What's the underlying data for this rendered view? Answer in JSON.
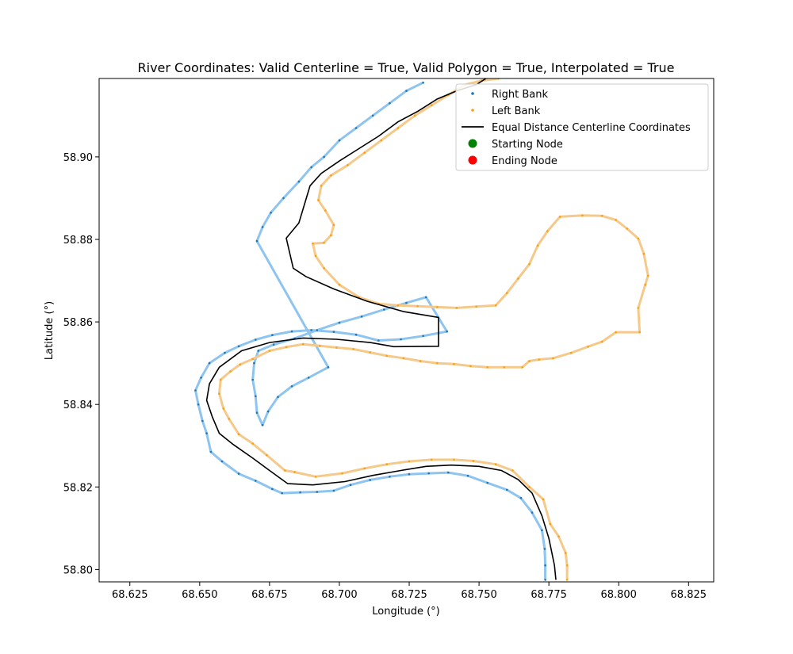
{
  "chart_data": {
    "type": "line",
    "title": "River Coordinates: Valid Centerline = True, Valid Polygon = True, Interpolated = True",
    "xlabel": "Longitude (°)",
    "ylabel": "Latitude (°)",
    "xlim": [
      68.614,
      68.834
    ],
    "ylim": [
      58.797,
      58.919
    ],
    "xticks": [
      68.625,
      68.65,
      68.675,
      68.7,
      68.725,
      68.75,
      68.775,
      68.8,
      68.825
    ],
    "xtick_labels": [
      "68.625",
      "68.650",
      "68.675",
      "68.700",
      "68.725",
      "68.750",
      "68.775",
      "68.800",
      "68.825"
    ],
    "yticks": [
      58.8,
      58.82,
      58.84,
      58.86,
      58.88,
      58.9
    ],
    "ytick_labels": [
      "58.80",
      "58.82",
      "58.84",
      "58.86",
      "58.88",
      "58.90"
    ],
    "grid": false,
    "legend_position": "top-right",
    "colors": {
      "right_bank": "#1f77b4",
      "right_bank_line": "#8ec4f0",
      "left_bank": "#ff9f0e",
      "left_bank_line": "#f5c98a",
      "centerline": "#000000",
      "start": "#008000",
      "end": "#ff0000"
    },
    "legend": [
      {
        "label": "Right Bank",
        "kind": "point",
        "color": "#1f77b4"
      },
      {
        "label": "Left Bank",
        "kind": "point",
        "color": "#ff9f0e"
      },
      {
        "label": "Equal Distance Centerline Coordinates",
        "kind": "line",
        "color": "#000000"
      },
      {
        "label": "Starting Node",
        "kind": "big-point",
        "color": "#008000"
      },
      {
        "label": "Ending Node",
        "kind": "big-point",
        "color": "#ff0000"
      }
    ],
    "series": [
      {
        "name": "Right Bank",
        "points": [
          [
            68.7385,
            58.8577
          ],
          [
            68.73,
            58.8566
          ],
          [
            68.722,
            58.8558
          ],
          [
            68.714,
            58.8555
          ],
          [
            68.706,
            58.8569
          ],
          [
            68.698,
            58.8576
          ],
          [
            68.69,
            58.858
          ],
          [
            68.683,
            58.8577
          ],
          [
            68.676,
            58.8568
          ],
          [
            68.67,
            58.8557
          ],
          [
            68.664,
            58.8541
          ],
          [
            68.659,
            58.8525
          ],
          [
            68.6535,
            58.85
          ],
          [
            68.6505,
            58.8465
          ],
          [
            68.6485,
            58.8434
          ],
          [
            68.6495,
            58.84
          ],
          [
            68.651,
            58.836
          ],
          [
            68.6525,
            58.833
          ],
          [
            68.654,
            58.8285
          ],
          [
            68.658,
            58.8262
          ],
          [
            68.664,
            58.8232
          ],
          [
            68.67,
            58.8215
          ],
          [
            68.676,
            58.8195
          ],
          [
            68.6795,
            58.8185
          ],
          [
            68.686,
            58.8187
          ],
          [
            68.692,
            58.8188
          ],
          [
            68.698,
            58.8191
          ],
          [
            68.704,
            58.8205
          ],
          [
            68.711,
            58.8217
          ],
          [
            68.718,
            58.8225
          ],
          [
            68.725,
            58.8231
          ],
          [
            68.732,
            58.8233
          ],
          [
            68.739,
            58.8235
          ],
          [
            68.746,
            58.8227
          ],
          [
            68.753,
            58.821
          ],
          [
            68.76,
            58.8193
          ],
          [
            68.765,
            58.8173
          ],
          [
            68.769,
            58.8138
          ],
          [
            68.7725,
            58.8095
          ],
          [
            68.7735,
            58.805
          ],
          [
            68.7737,
            58.801
          ],
          [
            68.7737,
            58.7975
          ]
        ],
        "upper_points": [
          [
            68.6725,
            58.835
          ],
          [
            68.6705,
            58.838
          ],
          [
            68.67,
            58.842
          ],
          [
            68.669,
            58.846
          ],
          [
            68.6695,
            58.85
          ],
          [
            68.671,
            58.853
          ],
          [
            68.6765,
            58.8545
          ],
          [
            68.684,
            58.856
          ],
          [
            68.692,
            58.858
          ],
          [
            68.7,
            58.8598
          ],
          [
            68.708,
            58.8613
          ],
          [
            68.716,
            58.863
          ],
          [
            68.724,
            58.8646
          ],
          [
            68.731,
            58.866
          ],
          [
            68.7385,
            58.8577
          ]
        ],
        "upper_bank": [
          [
            68.6725,
            58.835
          ],
          [
            68.6745,
            58.8383
          ],
          [
            68.678,
            58.8418
          ],
          [
            68.683,
            58.8444
          ],
          [
            68.689,
            58.8465
          ],
          [
            68.696,
            58.849
          ],
          [
            68.6705,
            58.8796
          ],
          [
            68.6725,
            58.883
          ],
          [
            68.6755,
            58.8865
          ],
          [
            68.68,
            58.89
          ],
          [
            68.6855,
            58.894
          ],
          [
            68.69,
            58.8975
          ],
          [
            68.6945,
            58.9
          ],
          [
            68.7,
            58.904
          ],
          [
            68.706,
            58.907
          ],
          [
            68.712,
            58.91
          ],
          [
            68.718,
            58.913
          ],
          [
            68.724,
            58.916
          ],
          [
            68.73,
            58.918
          ]
        ]
      },
      {
        "name": "Left Bank",
        "points": [
          [
            68.7815,
            58.7975
          ],
          [
            68.7815,
            58.801
          ],
          [
            68.781,
            58.804
          ],
          [
            68.7785,
            58.808
          ],
          [
            68.7755,
            58.811
          ],
          [
            68.773,
            58.817
          ],
          [
            68.768,
            58.82
          ],
          [
            68.762,
            58.824
          ],
          [
            68.756,
            58.8255
          ],
          [
            68.748,
            58.8263
          ],
          [
            68.741,
            58.8266
          ],
          [
            68.733,
            58.8266
          ],
          [
            68.725,
            58.8262
          ],
          [
            68.717,
            58.8255
          ],
          [
            68.709,
            58.8245
          ],
          [
            68.701,
            58.8233
          ],
          [
            68.6915,
            58.8225
          ],
          [
            68.684,
            58.8236
          ],
          [
            68.6805,
            58.824
          ],
          [
            68.674,
            58.8277
          ],
          [
            68.669,
            58.8305
          ],
          [
            68.664,
            58.8328
          ],
          [
            68.6605,
            58.8365
          ],
          [
            68.6585,
            58.839
          ],
          [
            68.657,
            58.8426
          ],
          [
            68.6575,
            58.846
          ],
          [
            68.661,
            58.848
          ],
          [
            68.6645,
            58.8497
          ],
          [
            68.669,
            58.851
          ],
          [
            68.675,
            58.853
          ],
          [
            68.681,
            58.8539
          ],
          [
            68.687,
            58.8546
          ],
          [
            68.693,
            58.8542
          ],
          [
            68.699,
            58.8538
          ],
          [
            68.705,
            58.8534
          ],
          [
            68.711,
            58.8526
          ],
          [
            68.717,
            58.8518
          ],
          [
            68.723,
            58.8512
          ],
          [
            68.729,
            58.8505
          ],
          [
            68.735,
            58.85
          ],
          [
            68.741,
            58.8498
          ],
          [
            68.747,
            58.8493
          ],
          [
            68.753,
            58.849
          ],
          [
            68.759,
            58.849
          ],
          [
            68.7655,
            58.849
          ]
        ],
        "loop": [
          [
            68.7655,
            58.849
          ],
          [
            68.768,
            58.8505
          ],
          [
            68.7715,
            58.8509
          ],
          [
            68.7765,
            58.8512
          ],
          [
            68.783,
            58.8525
          ],
          [
            68.789,
            58.854
          ],
          [
            68.794,
            58.8552
          ],
          [
            68.799,
            58.8575
          ],
          [
            68.8075,
            58.8575
          ],
          [
            68.807,
            58.8634
          ],
          [
            68.8095,
            58.869
          ],
          [
            68.8105,
            58.8712
          ],
          [
            68.809,
            58.8765
          ],
          [
            68.807,
            58.8802
          ],
          [
            68.803,
            58.8826
          ],
          [
            68.799,
            58.8847
          ],
          [
            68.794,
            58.8857
          ],
          [
            68.787,
            58.8858
          ],
          [
            68.779,
            58.8855
          ],
          [
            68.7745,
            58.882
          ],
          [
            68.771,
            58.8785
          ],
          [
            68.768,
            58.874
          ],
          [
            68.764,
            58.8705
          ],
          [
            68.76,
            58.867
          ],
          [
            68.756,
            58.864
          ],
          [
            68.749,
            58.8637
          ],
          [
            68.742,
            58.8634
          ],
          [
            68.735,
            58.8636
          ],
          [
            68.728,
            58.8638
          ],
          [
            68.721,
            58.864
          ],
          [
            68.714,
            58.8644
          ],
          [
            68.707,
            58.866
          ],
          [
            68.7,
            58.869
          ],
          [
            68.6945,
            58.873
          ],
          [
            68.6915,
            58.876
          ],
          [
            68.6905,
            58.879
          ],
          [
            68.6945,
            58.8792
          ],
          [
            68.697,
            58.881
          ],
          [
            68.698,
            58.8835
          ],
          [
            68.695,
            58.887
          ],
          [
            68.6925,
            58.8895
          ],
          [
            68.6935,
            58.893
          ],
          [
            68.697,
            58.8955
          ],
          [
            68.703,
            58.898
          ],
          [
            68.709,
            58.901
          ],
          [
            68.715,
            58.904
          ],
          [
            68.721,
            58.907
          ],
          [
            68.727,
            58.91
          ],
          [
            68.733,
            58.9125
          ],
          [
            68.739,
            58.915
          ],
          [
            68.745,
            58.9175
          ],
          [
            68.751,
            58.9185
          ],
          [
            68.757,
            58.919
          ]
        ]
      },
      {
        "name": "Equal Distance Centerline Coordinates",
        "points": [
          [
            68.7775,
            58.7975
          ],
          [
            68.777,
            58.801
          ],
          [
            68.775,
            58.8075
          ],
          [
            68.7725,
            58.813
          ],
          [
            68.769,
            58.8185
          ],
          [
            68.764,
            58.8218
          ],
          [
            68.758,
            58.824
          ],
          [
            68.75,
            58.825
          ],
          [
            68.74,
            58.8253
          ],
          [
            68.731,
            58.825
          ],
          [
            68.722,
            58.824
          ],
          [
            68.712,
            58.8228
          ],
          [
            68.702,
            58.8213
          ],
          [
            68.6905,
            58.8205
          ],
          [
            68.6815,
            58.8208
          ],
          [
            68.675,
            58.824
          ],
          [
            68.669,
            58.827
          ],
          [
            68.662,
            58.8303
          ],
          [
            68.657,
            58.833
          ],
          [
            68.6545,
            58.837
          ],
          [
            68.6525,
            58.841
          ],
          [
            68.6535,
            58.845
          ],
          [
            68.657,
            58.849
          ],
          [
            68.665,
            58.853
          ],
          [
            68.675,
            58.855
          ],
          [
            68.687,
            58.8561
          ],
          [
            68.699,
            58.8558
          ],
          [
            68.711,
            58.855
          ],
          [
            68.7195,
            58.854
          ],
          [
            68.7355,
            58.8541
          ],
          [
            68.7355,
            58.8611
          ],
          [
            68.723,
            58.8625
          ],
          [
            68.71,
            58.865
          ],
          [
            68.698,
            58.868
          ],
          [
            68.688,
            58.871
          ],
          [
            68.6835,
            58.873
          ],
          [
            68.681,
            58.8803
          ],
          [
            68.6855,
            58.884
          ],
          [
            68.6895,
            58.893
          ],
          [
            68.6935,
            58.896
          ],
          [
            68.7,
            58.899
          ],
          [
            68.707,
            58.902
          ],
          [
            68.714,
            58.905
          ],
          [
            68.721,
            58.9085
          ],
          [
            68.728,
            58.911
          ],
          [
            68.735,
            58.914
          ],
          [
            68.742,
            58.916
          ],
          [
            68.749,
            58.9175
          ],
          [
            68.7525,
            58.919
          ]
        ]
      }
    ]
  }
}
